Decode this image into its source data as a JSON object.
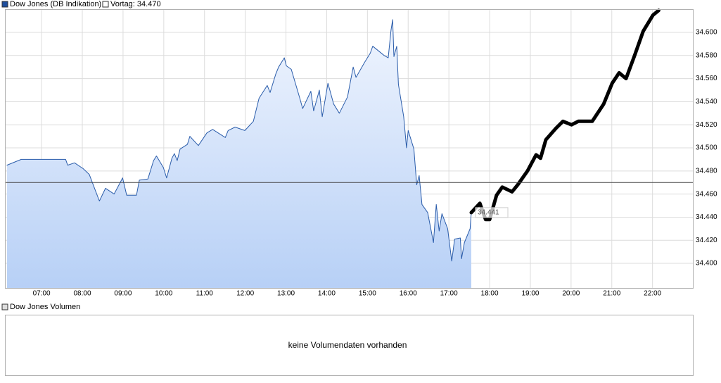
{
  "chart_data": {
    "type": "line",
    "legend": [
      {
        "name": "Dow Jones (DB Indikation)",
        "color": "#1f4e9c"
      }
    ],
    "reference": {
      "label": "Vortag: 34.470",
      "value": 34470,
      "color": "#444444"
    },
    "last_label": "34.441",
    "xlim": [
      6.1,
      22.99
    ],
    "xticks": [
      {
        "value": 7,
        "label": "07:00"
      },
      {
        "value": 8,
        "label": "08:00"
      },
      {
        "value": 9,
        "label": "09:00"
      },
      {
        "value": 10,
        "label": "10:00"
      },
      {
        "value": 11,
        "label": "11:00"
      },
      {
        "value": 12,
        "label": "12:00"
      },
      {
        "value": 13,
        "label": "13:00"
      },
      {
        "value": 14,
        "label": "14:00"
      },
      {
        "value": 15,
        "label": "15:00"
      },
      {
        "value": 16,
        "label": "16:00"
      },
      {
        "value": 17,
        "label": "17:00"
      },
      {
        "value": 18,
        "label": "18:00"
      },
      {
        "value": 19,
        "label": "19:00"
      },
      {
        "value": 20,
        "label": "20:00"
      },
      {
        "value": 21,
        "label": "21:00"
      },
      {
        "value": 22,
        "label": "22:00"
      }
    ],
    "ylim": [
      34378.7,
      34620.1
    ],
    "yticks": [
      {
        "value": 34400,
        "label": "34.400"
      },
      {
        "value": 34420,
        "label": "34.420"
      },
      {
        "value": 34440,
        "label": "34.440"
      },
      {
        "value": 34460,
        "label": "34.460"
      },
      {
        "value": 34480,
        "label": "34.480"
      },
      {
        "value": 34500,
        "label": "34.500"
      },
      {
        "value": 34520,
        "label": "34.520"
      },
      {
        "value": 34540,
        "label": "34.540"
      },
      {
        "value": 34560,
        "label": "34.560"
      },
      {
        "value": 34580,
        "label": "34.580"
      },
      {
        "value": 34600,
        "label": "34.600"
      }
    ],
    "grid": true,
    "series": [
      {
        "color": "#2a5caa",
        "area": true,
        "width": 1,
        "x": [
          6.15,
          6.5,
          7.59,
          7.64,
          7.81,
          8.02,
          8.17,
          8.3,
          8.42,
          8.57,
          8.78,
          8.99,
          9.09,
          9.33,
          9.4,
          9.61,
          9.75,
          9.82,
          9.99,
          10.07,
          10.2,
          10.26,
          10.33,
          10.4,
          10.58,
          10.64,
          10.85,
          11.06,
          11.2,
          11.51,
          11.58,
          11.75,
          11.99,
          12.2,
          12.34,
          12.54,
          12.61,
          12.75,
          12.82,
          12.96,
          13.01,
          13.13,
          13.34,
          13.41,
          13.61,
          13.68,
          13.82,
          13.89,
          14.03,
          14.17,
          14.31,
          14.51,
          14.65,
          14.72,
          14.93,
          15.07,
          15.13,
          15.27,
          15.41,
          15.51,
          15.58,
          15.62,
          15.65,
          15.72,
          15.76,
          15.89,
          15.96,
          16.0,
          16.14,
          16.21,
          16.27,
          16.34,
          16.48,
          16.62,
          16.69,
          16.76,
          16.83,
          16.97,
          17.07,
          17.14,
          17.28,
          17.31,
          17.38,
          17.52,
          17.55
        ],
        "values": [
          34485,
          34490,
          34490,
          34485,
          34487,
          34482,
          34477,
          34465,
          34454,
          34465,
          34460,
          34474,
          34459,
          34459,
          34472,
          34473,
          34489,
          34493,
          34483,
          34474,
          34491,
          34495,
          34489,
          34499,
          34503,
          34510,
          34502,
          34513,
          34516,
          34509,
          34515,
          34518,
          34515,
          34523,
          34543,
          34554,
          34548,
          34564,
          34570,
          34578,
          34571,
          34568,
          34543,
          34534,
          34549,
          34532,
          34550,
          34527,
          34556,
          34538,
          34530,
          34544,
          34570,
          34561,
          34574,
          34582,
          34588,
          34584,
          34580,
          34578,
          34602,
          34611,
          34579,
          34588,
          34555,
          34527,
          34500,
          34515,
          34499,
          34468,
          34476,
          34451,
          34444,
          34418,
          34451,
          34428,
          34443,
          34430,
          34402,
          34421,
          34422,
          34404,
          34418,
          34430,
          34444
        ]
      },
      {
        "color": "#000000",
        "area": false,
        "width": 5,
        "x": [
          17.55,
          17.76,
          17.9,
          18.0,
          18.17,
          18.31,
          18.55,
          18.69,
          18.93,
          19.14,
          19.25,
          19.38,
          19.63,
          19.8,
          20.01,
          20.18,
          20.52,
          20.8,
          21.01,
          21.18,
          21.35,
          21.56,
          21.77,
          22.01,
          22.15
        ],
        "values": [
          34444,
          34452,
          34438,
          34438,
          34459,
          34466,
          34462,
          34468,
          34480,
          34494,
          34491,
          34507,
          34517,
          34523,
          34520,
          34523,
          34523,
          34538,
          34556,
          34565,
          34560,
          34580,
          34601,
          34615,
          34619
        ]
      }
    ]
  },
  "volume": {
    "legend": "Dow Jones Volumen",
    "message": "keine Volumendaten vorhanden"
  }
}
